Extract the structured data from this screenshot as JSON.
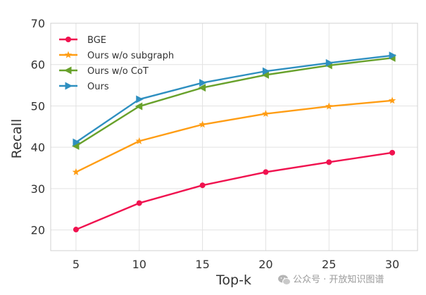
{
  "chart_data": {
    "type": "line",
    "x": [
      5,
      10,
      15,
      20,
      25,
      30
    ],
    "xlabel": "Top-k",
    "ylabel": "Recall",
    "xticks": [
      "5",
      "10",
      "15",
      "20",
      "25",
      "30"
    ],
    "yticks": [
      "20",
      "30",
      "40",
      "50",
      "60",
      "70"
    ],
    "xlim": [
      3,
      32
    ],
    "ylim": [
      15,
      70
    ],
    "grid": true,
    "legend_position": "top-left",
    "series": [
      {
        "name": "BGE",
        "color": "#f0124f",
        "marker": "circle",
        "values": [
          20.1,
          26.5,
          30.8,
          34.0,
          36.4,
          38.7
        ]
      },
      {
        "name": "Ours w/o subgraph",
        "color": "#ff9d14",
        "marker": "star",
        "values": [
          34.0,
          41.5,
          45.5,
          48.1,
          49.9,
          51.3
        ]
      },
      {
        "name": "Ours w/o CoT",
        "color": "#68a12b",
        "marker": "triangle-left",
        "values": [
          40.3,
          49.9,
          54.4,
          57.5,
          59.8,
          61.6
        ]
      },
      {
        "name": "Ours",
        "color": "#2e8fc0",
        "marker": "triangle-right",
        "values": [
          41.2,
          51.6,
          55.6,
          58.4,
          60.4,
          62.2
        ]
      }
    ]
  },
  "watermark": {
    "text": "公众号 · 开放知识图谱",
    "icon": "wechat-icon"
  }
}
